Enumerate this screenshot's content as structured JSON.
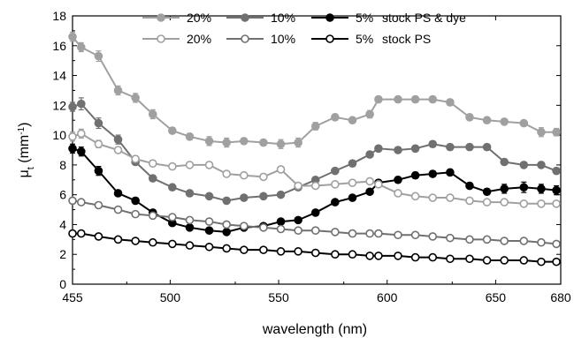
{
  "chart_data": {
    "type": "line",
    "xlabel": "wavelength (nm)",
    "ylabel_main": "μ",
    "ylabel_sub": "t",
    "ylabel_unit_pre": " (mm",
    "ylabel_unit_sup": "-1",
    "ylabel_unit_post": ")",
    "xlim": [
      455,
      680
    ],
    "ylim": [
      0,
      18
    ],
    "xticks": [
      455,
      500,
      550,
      600,
      650,
      680
    ],
    "yticks": [
      0,
      2,
      4,
      6,
      8,
      10,
      12,
      14,
      16,
      18
    ],
    "legend_position": "top",
    "x": [
      455,
      459,
      467,
      476,
      484,
      492,
      501,
      509,
      518,
      526,
      534,
      543,
      551,
      559,
      567,
      576,
      584,
      592,
      596,
      605,
      613,
      621,
      629,
      638,
      646,
      654,
      663,
      671,
      678
    ],
    "series": [
      {
        "name": "20% stock PS & dye",
        "legend_label": "20%",
        "color": "#a0a0a0",
        "filled": true,
        "y": [
          16.6,
          15.9,
          15.3,
          13.0,
          12.5,
          11.4,
          10.3,
          9.9,
          9.6,
          9.5,
          9.6,
          9.5,
          9.4,
          9.5,
          10.6,
          11.2,
          11.0,
          11.4,
          12.4,
          12.4,
          12.4,
          12.4,
          12.2,
          11.2,
          11.0,
          10.9,
          10.8,
          10.2,
          10.2
        ],
        "error": [
          0.3,
          0.3,
          0.35,
          0.3,
          0.3,
          0.3,
          0.2,
          0.2,
          0.3,
          0.3,
          0.2,
          0.2,
          0.3,
          0.3,
          0.25,
          0.2,
          0.2,
          0.25,
          0.2,
          0.2,
          0.2,
          0.2,
          0.2,
          0.2,
          0.2,
          0.2,
          0.2,
          0.3,
          0.25
        ]
      },
      {
        "name": "10% stock PS & dye",
        "legend_label": "10%",
        "color": "#707070",
        "filled": true,
        "y": [
          11.9,
          12.1,
          10.8,
          9.7,
          8.2,
          7.1,
          6.5,
          6.1,
          5.9,
          5.6,
          5.8,
          5.9,
          6.0,
          6.5,
          7.0,
          7.6,
          8.1,
          8.7,
          9.1,
          9.0,
          9.1,
          9.4,
          9.2,
          9.2,
          9.2,
          8.2,
          8.0,
          8.0,
          7.6
        ],
        "error": [
          0.3,
          0.4,
          0.35,
          0.3,
          0.2,
          0.2,
          0.2,
          0.2,
          0.15,
          0.15,
          0.15,
          0.15,
          0.15,
          0.15,
          0.15,
          0.15,
          0.2,
          0.2,
          0.2,
          0.2,
          0.2,
          0.2,
          0.2,
          0.2,
          0.2,
          0.2,
          0.2,
          0.2,
          0.2
        ]
      },
      {
        "name": "5% stock PS & dye",
        "legend_label": "5%",
        "color": "#000000",
        "filled": true,
        "y": [
          9.1,
          8.9,
          7.6,
          6.1,
          5.6,
          4.8,
          4.1,
          3.8,
          3.6,
          3.5,
          3.8,
          3.9,
          4.2,
          4.3,
          4.8,
          5.5,
          5.8,
          6.2,
          6.8,
          7.0,
          7.3,
          7.4,
          7.5,
          6.6,
          6.2,
          6.4,
          6.5,
          6.4,
          6.3
        ],
        "error": [
          0.3,
          0.3,
          0.3,
          0.2,
          0.2,
          0.2,
          0.15,
          0.15,
          0.15,
          0.15,
          0.15,
          0.15,
          0.15,
          0.15,
          0.15,
          0.15,
          0.15,
          0.15,
          0.2,
          0.2,
          0.2,
          0.2,
          0.2,
          0.2,
          0.2,
          0.3,
          0.35,
          0.3,
          0.3
        ]
      },
      {
        "name": "20% stock PS",
        "legend_label": "20%",
        "color": "#a0a0a0",
        "filled": false,
        "y": [
          9.9,
          10.1,
          9.4,
          9.0,
          8.4,
          8.1,
          7.9,
          8.0,
          8.0,
          7.4,
          7.3,
          7.2,
          7.7,
          6.6,
          6.6,
          6.7,
          6.8,
          6.9,
          6.7,
          6.1,
          5.9,
          5.8,
          5.8,
          5.6,
          5.5,
          5.5,
          5.4,
          5.4,
          5.4
        ],
        "error": [
          0.3,
          0.3,
          0.25,
          0.2,
          0.2,
          0.2,
          0.15,
          0.15,
          0.2,
          0.15,
          0.15,
          0.15,
          0.15,
          0.15,
          0.15,
          0.15,
          0.15,
          0.15,
          0.15,
          0.15,
          0.15,
          0.15,
          0.15,
          0.15,
          0.15,
          0.15,
          0.15,
          0.15,
          0.15
        ]
      },
      {
        "name": "10% stock PS",
        "legend_label": "10%",
        "color": "#707070",
        "filled": false,
        "y": [
          5.6,
          5.5,
          5.3,
          5.0,
          4.7,
          4.6,
          4.5,
          4.3,
          4.2,
          4.0,
          3.9,
          3.8,
          3.7,
          3.6,
          3.6,
          3.5,
          3.4,
          3.4,
          3.4,
          3.3,
          3.3,
          3.2,
          3.1,
          3.0,
          3.0,
          2.9,
          2.9,
          2.8,
          2.7
        ],
        "error": [
          0.15,
          0.15,
          0.15,
          0.15,
          0.15,
          0.15,
          0.15,
          0.15,
          0.15,
          0.15,
          0.15,
          0.15,
          0.15,
          0.15,
          0.15,
          0.15,
          0.15,
          0.15,
          0.15,
          0.15,
          0.15,
          0.15,
          0.15,
          0.15,
          0.15,
          0.15,
          0.15,
          0.15,
          0.15
        ]
      },
      {
        "name": "5% stock PS",
        "legend_label": "5%",
        "color": "#000000",
        "filled": false,
        "y": [
          3.4,
          3.4,
          3.2,
          3.0,
          2.9,
          2.8,
          2.7,
          2.6,
          2.5,
          2.4,
          2.3,
          2.3,
          2.2,
          2.2,
          2.1,
          2.0,
          2.0,
          1.9,
          1.9,
          1.9,
          1.8,
          1.8,
          1.7,
          1.7,
          1.6,
          1.6,
          1.6,
          1.5,
          1.5
        ],
        "error": [
          0.1,
          0.1,
          0.1,
          0.1,
          0.1,
          0.1,
          0.1,
          0.1,
          0.1,
          0.1,
          0.1,
          0.1,
          0.1,
          0.1,
          0.1,
          0.1,
          0.1,
          0.1,
          0.1,
          0.1,
          0.1,
          0.1,
          0.1,
          0.1,
          0.1,
          0.1,
          0.1,
          0.1,
          0.1
        ]
      }
    ],
    "legend_rows": [
      {
        "suffix": "stock PS & dye",
        "series": [
          0,
          1,
          2
        ]
      },
      {
        "suffix": "stock PS",
        "series": [
          3,
          4,
          5
        ]
      }
    ]
  }
}
